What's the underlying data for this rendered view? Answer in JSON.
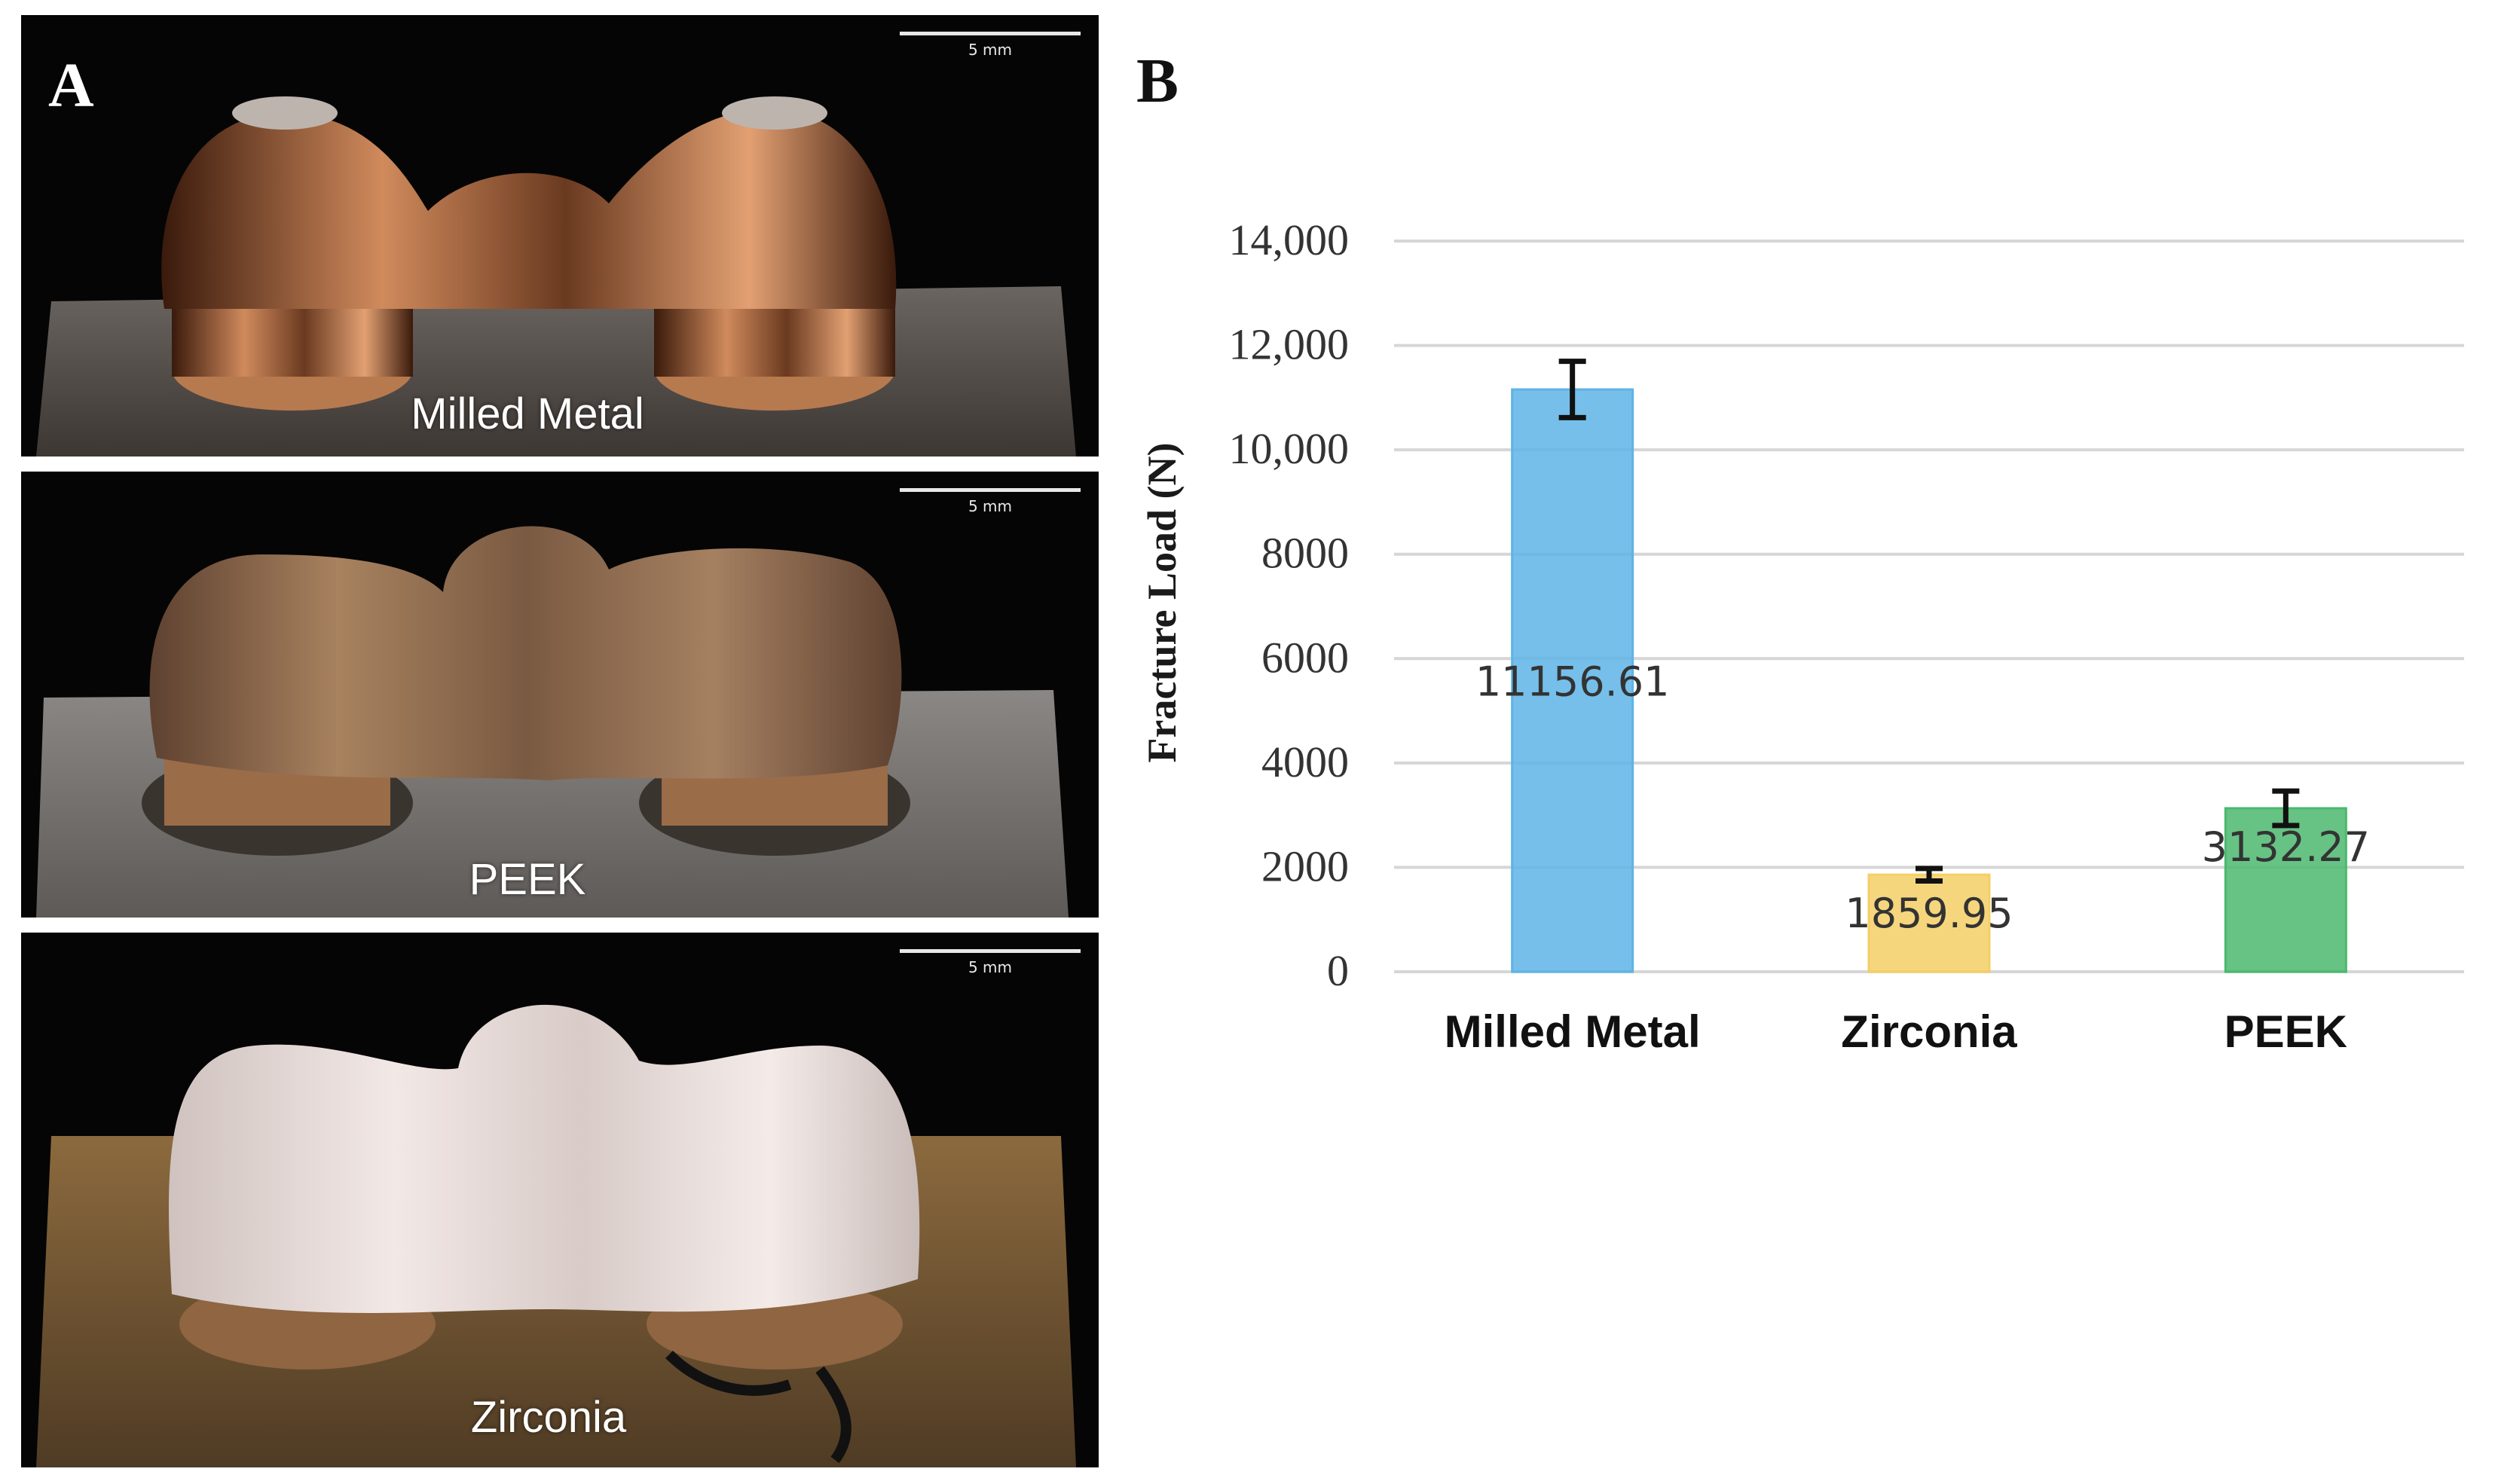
{
  "panels": {
    "a_letter": "A",
    "b_letter": "B"
  },
  "photos": [
    {
      "label": "Milled Metal",
      "scale": "5 mm",
      "material_color": "#c98a5a"
    },
    {
      "label": "PEEK",
      "scale": "5 mm",
      "material_color": "#8e6a4e"
    },
    {
      "label": "Zirconia",
      "scale": "5 mm",
      "material_color": "#efe4e2"
    }
  ],
  "chart_data": {
    "type": "bar",
    "title": "",
    "xlabel": "",
    "ylabel": "Fracture Load (N)",
    "categories": [
      "Milled Metal",
      "Zirconia",
      "PEEK"
    ],
    "values": [
      11156.61,
      1859.95,
      3132.27
    ],
    "value_labels": [
      "11156.61",
      "1859.95",
      "3132.27"
    ],
    "error": [
      540,
      120,
      330
    ],
    "colors": [
      "#5db4e6",
      "#f5cf66",
      "#4bb86e"
    ],
    "ylim": [
      0,
      14000
    ],
    "yticks": [
      0,
      2000,
      4000,
      6000,
      8000,
      10000,
      12000,
      14000
    ],
    "ytick_labels": [
      "0",
      "2000",
      "4000",
      "6000",
      "8000",
      "10,000",
      "12,000",
      "14,000"
    ],
    "grid": true
  }
}
